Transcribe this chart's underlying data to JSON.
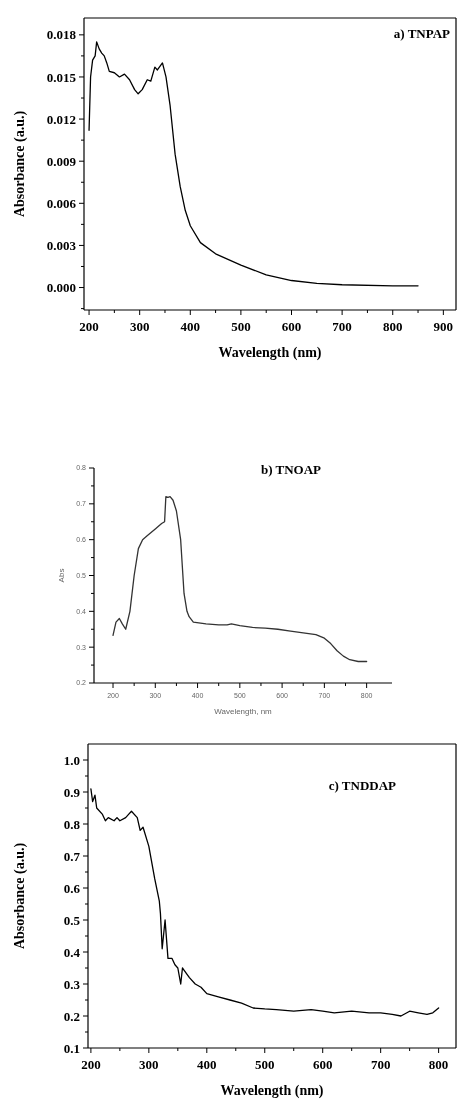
{
  "chart_data": [
    {
      "type": "line",
      "title": "a) TNPAP",
      "xlabel": "Wavelength (nm)",
      "ylabel": "Absorbance (a.u.)",
      "xlim": [
        190,
        925
      ],
      "ylim": [
        -0.0016,
        0.0192
      ],
      "xticks": [
        200,
        {
          "value": 250,
          "label": null
        },
        300,
        {
          "value": 350,
          "label": null
        },
        400,
        {
          "value": 450,
          "label": null
        },
        500,
        {
          "value": 550,
          "label": null
        },
        600,
        {
          "value": 650,
          "label": null
        },
        700,
        {
          "value": 750,
          "label": null
        },
        800,
        {
          "value": 850,
          "label": null
        },
        900
      ],
      "yticks": [
        {
          "value": -0.0015,
          "label": null
        },
        {
          "value": 0,
          "label": "0.000"
        },
        {
          "value": 0.0015,
          "label": null
        },
        {
          "value": 0.003,
          "label": "0.003"
        },
        {
          "value": 0.0045,
          "label": null
        },
        {
          "value": 0.006,
          "label": "0.006"
        },
        {
          "value": 0.0075,
          "label": null
        },
        {
          "value": 0.009,
          "label": "0.009"
        },
        {
          "value": 0.0105,
          "label": null
        },
        {
          "value": 0.012,
          "label": "0.012"
        },
        {
          "value": 0.0135,
          "label": null
        },
        {
          "value": 0.015,
          "label": "0.015"
        },
        {
          "value": 0.0165,
          "label": null
        },
        {
          "value": 0.018,
          "label": "0.018"
        }
      ],
      "grid": false,
      "marker": "none",
      "line_style": "solid",
      "series": [
        {
          "color": "#000000",
          "x": [
            200,
            203,
            207,
            212,
            215,
            220,
            225,
            230,
            235,
            240,
            250,
            260,
            270,
            280,
            290,
            297,
            305,
            315,
            322,
            330,
            335,
            345,
            352,
            360,
            370,
            380,
            390,
            400,
            420,
            450,
            500,
            550,
            600,
            650,
            700,
            800,
            850
          ],
          "values": [
            0.0112,
            0.015,
            0.0162,
            0.0165,
            0.0175,
            0.017,
            0.0167,
            0.0165,
            0.016,
            0.0154,
            0.0153,
            0.015,
            0.0152,
            0.0148,
            0.0141,
            0.0138,
            0.0141,
            0.0148,
            0.0147,
            0.0157,
            0.0155,
            0.016,
            0.015,
            0.013,
            0.0095,
            0.0072,
            0.0055,
            0.0044,
            0.0032,
            0.0024,
            0.0016,
            0.0009,
            0.0005,
            0.0003,
            0.0002,
            0.00012,
            0.00012
          ]
        }
      ]
    },
    {
      "type": "line",
      "title": "b) TNOAP",
      "xlabel": "Wavelength, nm",
      "ylabel": "Abs",
      "xlim": [
        155,
        860
      ],
      "ylim": [
        0.2,
        0.8
      ],
      "xticks": [
        200,
        {
          "value": 250,
          "label": null
        },
        300,
        {
          "value": 350,
          "label": null
        },
        400,
        {
          "value": 450,
          "label": null
        },
        500,
        {
          "value": 550,
          "label": null
        },
        600,
        {
          "value": 650,
          "label": null
        },
        700,
        {
          "value": 750,
          "label": null
        },
        800
      ],
      "yticks": [
        0.2,
        {
          "value": 0.25,
          "label": null
        },
        0.3,
        {
          "value": 0.35,
          "label": null
        },
        0.4,
        {
          "value": 0.45,
          "label": null
        },
        0.5,
        {
          "value": 0.55,
          "label": null
        },
        0.6,
        {
          "value": 0.65,
          "label": null
        },
        0.7,
        {
          "value": 0.75,
          "label": null
        },
        0.8
      ],
      "grid": false,
      "marker": "none",
      "line_style": "solid",
      "series": [
        {
          "color": "#333333",
          "x": [
            200,
            207,
            215,
            222,
            230,
            240,
            250,
            260,
            270,
            280,
            290,
            300,
            315,
            322,
            325,
            330,
            335,
            342,
            350,
            360,
            368,
            375,
            380,
            390,
            420,
            450,
            470,
            480,
            500,
            530,
            560,
            590,
            620,
            650,
            680,
            700,
            715,
            730,
            745,
            760,
            780,
            800
          ],
          "values": [
            0.333,
            0.37,
            0.38,
            0.365,
            0.35,
            0.4,
            0.5,
            0.575,
            0.6,
            0.61,
            0.62,
            0.63,
            0.645,
            0.65,
            0.72,
            0.718,
            0.72,
            0.71,
            0.68,
            0.6,
            0.45,
            0.4,
            0.385,
            0.37,
            0.365,
            0.362,
            0.362,
            0.365,
            0.36,
            0.355,
            0.353,
            0.35,
            0.345,
            0.34,
            0.335,
            0.325,
            0.31,
            0.29,
            0.275,
            0.265,
            0.26,
            0.26
          ]
        }
      ]
    },
    {
      "type": "line",
      "title": "c) TNDDAP",
      "xlabel": "Wavelength (nm)",
      "ylabel": "Absorbance (a.u.)",
      "xlim": [
        195,
        830
      ],
      "ylim": [
        0.1,
        1.05
      ],
      "xticks": [
        200,
        {
          "value": 250,
          "label": null
        },
        300,
        {
          "value": 350,
          "label": null
        },
        400,
        {
          "value": 450,
          "label": null
        },
        500,
        {
          "value": 550,
          "label": null
        },
        600,
        {
          "value": 650,
          "label": null
        },
        700,
        {
          "value": 750,
          "label": null
        },
        800
      ],
      "yticks": [
        {
          "value": 0.1,
          "label": "0.1"
        },
        {
          "value": 0.15,
          "label": null
        },
        {
          "value": 0.2,
          "label": "0.2"
        },
        {
          "value": 0.25,
          "label": null
        },
        {
          "value": 0.3,
          "label": "0.3"
        },
        {
          "value": 0.35,
          "label": null
        },
        {
          "value": 0.4,
          "label": "0.4"
        },
        {
          "value": 0.45,
          "label": null
        },
        {
          "value": 0.5,
          "label": "0.5"
        },
        {
          "value": 0.55,
          "label": null
        },
        {
          "value": 0.6,
          "label": "0.6"
        },
        {
          "value": 0.65,
          "label": null
        },
        {
          "value": 0.7,
          "label": "0.7"
        },
        {
          "value": 0.75,
          "label": null
        },
        {
          "value": 0.8,
          "label": "0.8"
        },
        {
          "value": 0.85,
          "label": null
        },
        {
          "value": 0.9,
          "label": "0.9"
        },
        {
          "value": 0.95,
          "label": null
        },
        {
          "value": 1.0,
          "label": "1.0"
        }
      ],
      "grid": false,
      "marker": "none",
      "line_style": "solid",
      "series": [
        {
          "color": "#000000",
          "x": [
            200,
            203,
            207,
            210,
            220,
            225,
            230,
            240,
            245,
            250,
            260,
            265,
            270,
            280,
            285,
            290,
            300,
            310,
            318,
            320,
            323,
            328,
            333,
            340,
            345,
            350,
            355,
            358,
            360,
            370,
            380,
            390,
            400,
            420,
            440,
            460,
            480,
            500,
            520,
            550,
            580,
            600,
            620,
            650,
            680,
            700,
            720,
            735,
            750,
            765,
            780,
            790,
            800
          ],
          "values": [
            0.91,
            0.87,
            0.89,
            0.85,
            0.83,
            0.81,
            0.82,
            0.81,
            0.82,
            0.81,
            0.82,
            0.83,
            0.84,
            0.82,
            0.78,
            0.79,
            0.73,
            0.63,
            0.56,
            0.52,
            0.41,
            0.5,
            0.38,
            0.38,
            0.36,
            0.35,
            0.3,
            0.35,
            0.345,
            0.32,
            0.3,
            0.29,
            0.27,
            0.26,
            0.25,
            0.24,
            0.225,
            0.222,
            0.22,
            0.215,
            0.22,
            0.215,
            0.21,
            0.215,
            0.21,
            0.21,
            0.205,
            0.2,
            0.215,
            0.21,
            0.205,
            0.21,
            0.225
          ]
        }
      ]
    }
  ]
}
